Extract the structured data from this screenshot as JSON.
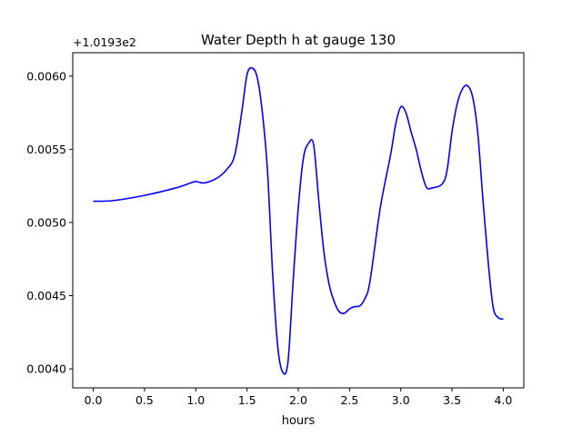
{
  "chart_data": {
    "type": "line",
    "title": "Water Depth h at gauge 130",
    "xlabel": "hours",
    "ylabel": "",
    "y_offset_label": "+1.0193e2",
    "xlim": [
      -0.2,
      4.2
    ],
    "ylim": [
      0.00387,
      0.00616
    ],
    "grid": false,
    "x_ticks": [
      0.0,
      0.5,
      1.0,
      1.5,
      2.0,
      2.5,
      3.0,
      3.5,
      4.0
    ],
    "x_tick_labels": [
      "0.0",
      "0.5",
      "1.0",
      "1.5",
      "2.0",
      "2.5",
      "3.0",
      "3.5",
      "4.0"
    ],
    "y_ticks": [
      0.004,
      0.0045,
      0.005,
      0.0055,
      0.006
    ],
    "y_tick_labels": [
      "0.0040",
      "0.0045",
      "0.0050",
      "0.0055",
      "0.0060"
    ],
    "series": [
      {
        "name": "",
        "color": "#0000ff",
        "x": [
          0.0,
          0.2,
          0.5,
          0.8,
          0.95,
          1.0,
          1.08,
          1.2,
          1.3,
          1.38,
          1.45,
          1.5,
          1.55,
          1.6,
          1.65,
          1.7,
          1.75,
          1.8,
          1.85,
          1.9,
          1.95,
          2.0,
          2.05,
          2.1,
          2.15,
          2.2,
          2.25,
          2.3,
          2.35,
          2.4,
          2.45,
          2.5,
          2.55,
          2.6,
          2.65,
          2.7,
          2.8,
          2.9,
          2.95,
          3.0,
          3.05,
          3.1,
          3.15,
          3.2,
          3.25,
          3.3,
          3.4,
          3.45,
          3.5,
          3.55,
          3.6,
          3.65,
          3.7,
          3.75,
          3.8,
          3.85,
          3.9,
          3.95,
          4.0
        ],
        "y": [
          0.005145,
          0.00515,
          0.005185,
          0.005235,
          0.00527,
          0.00528,
          0.00527,
          0.0053,
          0.00536,
          0.00546,
          0.00576,
          0.00601,
          0.006055,
          0.00599,
          0.00575,
          0.00535,
          0.00465,
          0.00415,
          0.003975,
          0.00405,
          0.0046,
          0.0051,
          0.00544,
          0.00554,
          0.00553,
          0.00515,
          0.0048,
          0.00458,
          0.00446,
          0.00439,
          0.00438,
          0.00441,
          0.004425,
          0.00443,
          0.00448,
          0.0046,
          0.0051,
          0.00546,
          0.00567,
          0.00579,
          0.00575,
          0.00562,
          0.0055,
          0.00535,
          0.00524,
          0.005235,
          0.00526,
          0.00535,
          0.00562,
          0.00581,
          0.00591,
          0.005935,
          0.00586,
          0.00562,
          0.00517,
          0.00475,
          0.004425,
          0.00435,
          0.00434
        ]
      }
    ]
  }
}
